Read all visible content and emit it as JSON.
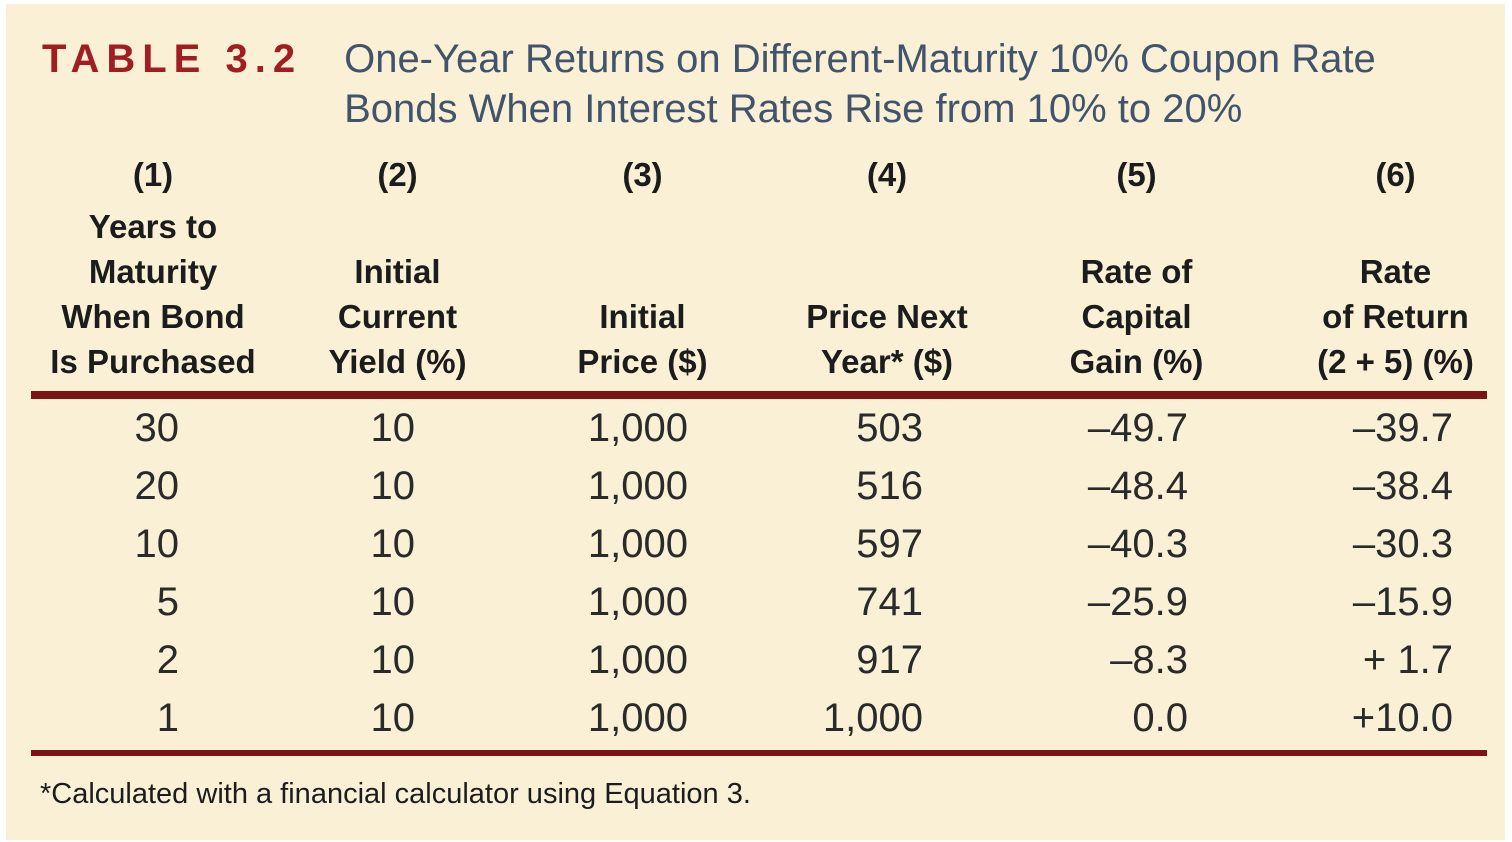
{
  "table": {
    "label": "TABLE 3.2",
    "title_line1": "One-Year Returns on Different-Maturity 10% Coupon Rate",
    "title_line2": "Bonds When Interest Rates Rise from 10% to 20%",
    "columns": [
      {
        "num": "(1)",
        "lines": [
          "Years to",
          "Maturity",
          "When Bond",
          "Is Purchased"
        ]
      },
      {
        "num": "(2)",
        "lines": [
          "Initial",
          "Current",
          "Yield (%)"
        ]
      },
      {
        "num": "(3)",
        "lines": [
          "Initial",
          "Price ($)"
        ]
      },
      {
        "num": "(4)",
        "lines": [
          "Price Next",
          "Year* ($)"
        ]
      },
      {
        "num": "(5)",
        "lines": [
          "Rate of",
          "Capital",
          "Gain (%)"
        ]
      },
      {
        "num": "(6)",
        "lines": [
          "Rate",
          "of Return",
          "(2 + 5) (%)"
        ]
      }
    ],
    "rows": [
      [
        "30",
        "10",
        "1,000",
        "503",
        "–49.7",
        "–39.7"
      ],
      [
        "20",
        "10",
        "1,000",
        "516",
        "–48.4",
        "–38.4"
      ],
      [
        "10",
        "10",
        "1,000",
        "597",
        "–40.3",
        "–30.3"
      ],
      [
        "5",
        "10",
        "1,000",
        "741",
        "–25.9",
        "–15.9"
      ],
      [
        "2",
        "10",
        "1,000",
        "917",
        "–8.3",
        "+ 1.7"
      ],
      [
        "1",
        "10",
        "1,000",
        "1,000",
        "0.0",
        "+10.0"
      ]
    ],
    "footnote": "*Calculated with a financial calculator using Equation 3.",
    "colors": {
      "background": "#FAF0D6",
      "rule": "#7D1316",
      "label": "#A01E22",
      "title": "#42546B",
      "text": "#2A2A2A"
    }
  }
}
